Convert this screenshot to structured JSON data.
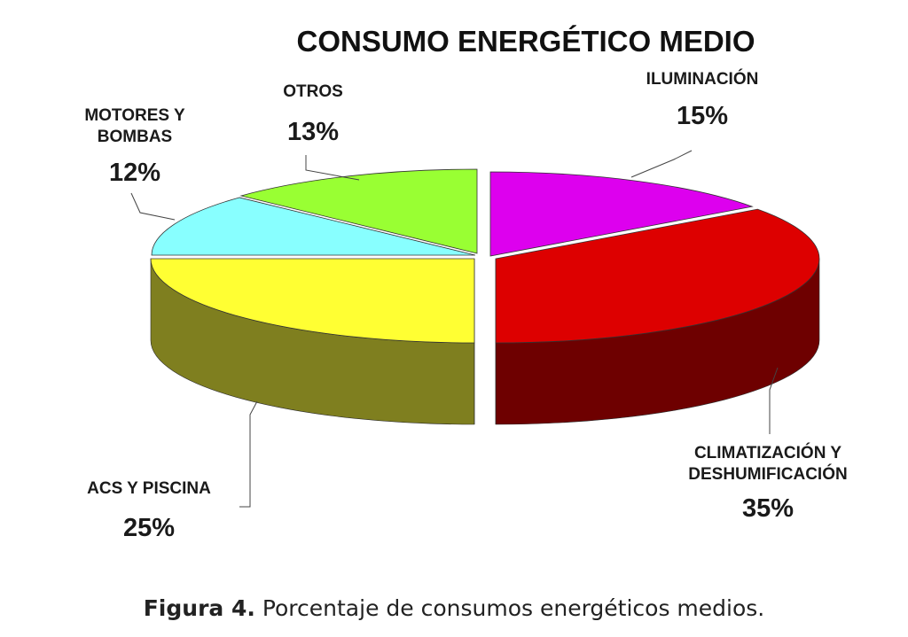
{
  "chart_data": {
    "type": "pie",
    "style": "3d-exploded",
    "title": "CONSUMO ENERGÉTICO MEDIO",
    "slices": [
      {
        "name": "ILUMINACIÓN",
        "label_lines": [
          "ILUMINACIÓN"
        ],
        "value": 15,
        "value_label": "15%",
        "color": "#dd00ee",
        "side_color": "#8a0094"
      },
      {
        "name": "CLIMATIZACIÓN Y DESHUMIFICACIÓN",
        "label_lines": [
          "CLIMATIZACIÓN Y",
          "DESHUMIFICACIÓN"
        ],
        "value": 35,
        "value_label": "35%",
        "color": "#dd0000",
        "side_color": "#6e0000"
      },
      {
        "name": "ACS Y PISCINA",
        "label_lines": [
          "ACS Y PISCINA"
        ],
        "value": 25,
        "value_label": "25%",
        "color": "#ffff33",
        "side_color": "#7f7f1f"
      },
      {
        "name": "MOTORES Y BOMBAS",
        "label_lines": [
          "MOTORES Y",
          "BOMBAS"
        ],
        "value": 12,
        "value_label": "12%",
        "color": "#88ffff",
        "side_color": "#3a8a8a"
      },
      {
        "name": "OTROS",
        "label_lines": [
          "OTROS"
        ],
        "value": 13,
        "value_label": "13%",
        "color": "#99ff33",
        "side_color": "#4d8a1a"
      }
    ]
  },
  "caption": {
    "prefix": "Figura 4.",
    "text": " Porcentaje de consumos energéticos medios."
  }
}
